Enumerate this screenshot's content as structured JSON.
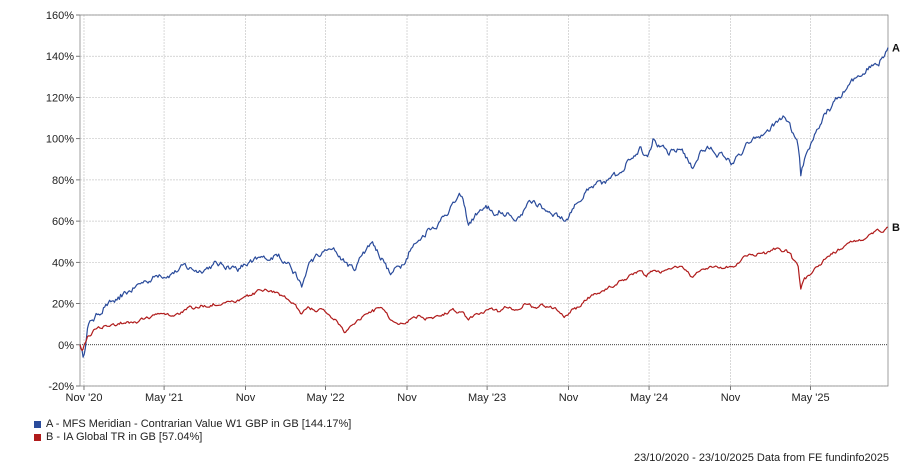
{
  "chart_data": {
    "type": "line",
    "title": "",
    "xlabel": "",
    "ylabel": "",
    "ylim": [
      -20,
      160
    ],
    "y_ticks": [
      -20,
      0,
      20,
      40,
      60,
      80,
      100,
      120,
      140,
      160
    ],
    "y_tick_labels": [
      "-20%",
      "0%",
      "20%",
      "40%",
      "60%",
      "80%",
      "100%",
      "120%",
      "140%",
      "160%"
    ],
    "x_range": [
      "2020-10-23",
      "2025-10-23"
    ],
    "x_ticks": [
      "2020-11",
      "2021-05",
      "2021-11",
      "2022-05",
      "2022-11",
      "2023-05",
      "2023-11",
      "2024-05",
      "2024-11",
      "2025-05"
    ],
    "x_tick_labels": [
      "Nov '20",
      "May '21",
      "Nov",
      "May '22",
      "Nov",
      "May '23",
      "Nov",
      "May '24",
      "Nov",
      "May '25"
    ],
    "grid": true,
    "zero_line": true,
    "series": [
      {
        "name": "A - MFS Meridian - Contrarian Value W1 GBP in GB [144.17%]",
        "end_label": "A",
        "color": "#2a4b9b",
        "points": [
          [
            "2020-10-23",
            0
          ],
          [
            "2020-10-30",
            -6
          ],
          [
            "2020-11-09",
            8
          ],
          [
            "2020-11-20",
            12
          ],
          [
            "2020-12-15",
            18
          ],
          [
            "2021-01-20",
            22
          ],
          [
            "2021-02-25",
            28
          ],
          [
            "2021-03-20",
            31
          ],
          [
            "2021-04-20",
            34
          ],
          [
            "2021-05-20",
            35
          ],
          [
            "2021-06-20",
            38
          ],
          [
            "2021-07-20",
            36
          ],
          [
            "2021-08-20",
            39
          ],
          [
            "2021-09-20",
            38
          ],
          [
            "2021-10-20",
            37
          ],
          [
            "2021-11-15",
            40
          ],
          [
            "2021-12-15",
            42
          ],
          [
            "2022-01-15",
            44
          ],
          [
            "2022-02-05",
            40
          ],
          [
            "2022-02-25",
            33
          ],
          [
            "2022-03-08",
            28
          ],
          [
            "2022-03-25",
            40
          ],
          [
            "2022-04-15",
            43
          ],
          [
            "2022-05-05",
            46
          ],
          [
            "2022-05-25",
            45
          ],
          [
            "2022-06-15",
            40
          ],
          [
            "2022-07-05",
            36
          ],
          [
            "2022-07-25",
            45
          ],
          [
            "2022-08-15",
            50
          ],
          [
            "2022-09-05",
            42
          ],
          [
            "2022-09-25",
            34
          ],
          [
            "2022-10-15",
            38
          ],
          [
            "2022-11-05",
            45
          ],
          [
            "2022-11-25",
            50
          ],
          [
            "2022-12-15",
            55
          ],
          [
            "2023-01-15",
            60
          ],
          [
            "2023-02-10",
            68
          ],
          [
            "2023-03-05",
            72
          ],
          [
            "2023-03-20",
            58
          ],
          [
            "2023-04-10",
            64
          ],
          [
            "2023-05-01",
            66
          ],
          [
            "2023-05-25",
            63
          ],
          [
            "2023-06-15",
            64
          ],
          [
            "2023-07-05",
            60
          ],
          [
            "2023-07-25",
            66
          ],
          [
            "2023-08-15",
            70
          ],
          [
            "2023-09-05",
            66
          ],
          [
            "2023-10-05",
            64
          ],
          [
            "2023-10-25",
            60
          ],
          [
            "2023-11-15",
            68
          ],
          [
            "2023-12-15",
            75
          ],
          [
            "2024-01-15",
            78
          ],
          [
            "2024-02-15",
            82
          ],
          [
            "2024-03-15",
            90
          ],
          [
            "2024-04-10",
            96
          ],
          [
            "2024-04-25",
            92
          ],
          [
            "2024-05-10",
            100
          ],
          [
            "2024-05-25",
            96
          ],
          [
            "2024-06-15",
            92
          ],
          [
            "2024-07-15",
            95
          ],
          [
            "2024-08-05",
            86
          ],
          [
            "2024-08-25",
            94
          ],
          [
            "2024-09-15",
            95
          ],
          [
            "2024-10-15",
            92
          ],
          [
            "2024-11-05",
            88
          ],
          [
            "2024-11-25",
            92
          ],
          [
            "2024-12-15",
            98
          ],
          [
            "2025-01-15",
            102
          ],
          [
            "2025-02-15",
            108
          ],
          [
            "2025-03-05",
            110
          ],
          [
            "2025-03-20",
            103
          ],
          [
            "2025-04-03",
            96
          ],
          [
            "2025-04-09",
            82
          ],
          [
            "2025-04-20",
            92
          ],
          [
            "2025-05-10",
            102
          ],
          [
            "2025-06-05",
            112
          ],
          [
            "2025-07-05",
            120
          ],
          [
            "2025-08-05",
            128
          ],
          [
            "2025-09-05",
            134
          ],
          [
            "2025-10-05",
            138
          ],
          [
            "2025-10-23",
            144.17
          ]
        ]
      },
      {
        "name": "B - IA Global TR in GB [57.04%]",
        "end_label": "B",
        "color": "#b01c1c",
        "points": [
          [
            "2020-10-23",
            0
          ],
          [
            "2020-10-30",
            -2
          ],
          [
            "2020-11-09",
            4
          ],
          [
            "2020-11-20",
            6
          ],
          [
            "2020-12-15",
            9
          ],
          [
            "2021-01-20",
            10
          ],
          [
            "2021-02-25",
            11
          ],
          [
            "2021-03-20",
            13
          ],
          [
            "2021-04-20",
            15
          ],
          [
            "2021-05-20",
            14
          ],
          [
            "2021-06-20",
            17
          ],
          [
            "2021-07-20",
            18
          ],
          [
            "2021-08-20",
            20
          ],
          [
            "2021-09-20",
            21
          ],
          [
            "2021-10-20",
            22
          ],
          [
            "2021-11-15",
            24
          ],
          [
            "2021-12-15",
            27
          ],
          [
            "2022-01-15",
            25
          ],
          [
            "2022-02-05",
            22
          ],
          [
            "2022-02-25",
            18
          ],
          [
            "2022-03-08",
            15
          ],
          [
            "2022-03-25",
            18
          ],
          [
            "2022-04-15",
            17
          ],
          [
            "2022-05-05",
            15
          ],
          [
            "2022-05-25",
            12
          ],
          [
            "2022-06-15",
            6
          ],
          [
            "2022-07-05",
            10
          ],
          [
            "2022-07-25",
            14
          ],
          [
            "2022-08-15",
            17
          ],
          [
            "2022-09-05",
            18
          ],
          [
            "2022-09-25",
            12
          ],
          [
            "2022-10-15",
            10
          ],
          [
            "2022-11-05",
            12
          ],
          [
            "2022-11-25",
            14
          ],
          [
            "2022-12-15",
            13
          ],
          [
            "2023-01-15",
            14
          ],
          [
            "2023-02-10",
            17
          ],
          [
            "2023-03-05",
            16
          ],
          [
            "2023-03-20",
            12
          ],
          [
            "2023-04-10",
            15
          ],
          [
            "2023-05-01",
            17
          ],
          [
            "2023-05-25",
            16
          ],
          [
            "2023-06-15",
            18
          ],
          [
            "2023-07-05",
            17
          ],
          [
            "2023-07-25",
            20
          ],
          [
            "2023-08-15",
            18
          ],
          [
            "2023-09-05",
            19
          ],
          [
            "2023-10-05",
            17
          ],
          [
            "2023-10-25",
            14
          ],
          [
            "2023-11-15",
            18
          ],
          [
            "2023-12-15",
            23
          ],
          [
            "2024-01-15",
            26
          ],
          [
            "2024-02-15",
            29
          ],
          [
            "2024-03-15",
            33
          ],
          [
            "2024-04-10",
            36
          ],
          [
            "2024-04-25",
            33
          ],
          [
            "2024-05-10",
            36
          ],
          [
            "2024-05-25",
            35
          ],
          [
            "2024-06-15",
            37
          ],
          [
            "2024-07-15",
            38
          ],
          [
            "2024-08-05",
            33
          ],
          [
            "2024-08-25",
            36
          ],
          [
            "2024-09-15",
            38
          ],
          [
            "2024-10-15",
            37
          ],
          [
            "2024-11-05",
            38
          ],
          [
            "2024-11-25",
            41
          ],
          [
            "2024-12-15",
            44
          ],
          [
            "2025-01-15",
            45
          ],
          [
            "2025-02-15",
            47
          ],
          [
            "2025-03-05",
            46
          ],
          [
            "2025-03-20",
            42
          ],
          [
            "2025-04-03",
            38
          ],
          [
            "2025-04-09",
            27
          ],
          [
            "2025-04-20",
            32
          ],
          [
            "2025-05-10",
            37
          ],
          [
            "2025-06-05",
            42
          ],
          [
            "2025-07-05",
            46
          ],
          [
            "2025-08-05",
            50
          ],
          [
            "2025-09-05",
            52
          ],
          [
            "2025-10-05",
            55
          ],
          [
            "2025-10-23",
            57.04
          ]
        ]
      }
    ],
    "legend_position": "bottom-left",
    "footer": "23/10/2020 - 23/10/2025 Data from FE fundinfo2025"
  }
}
